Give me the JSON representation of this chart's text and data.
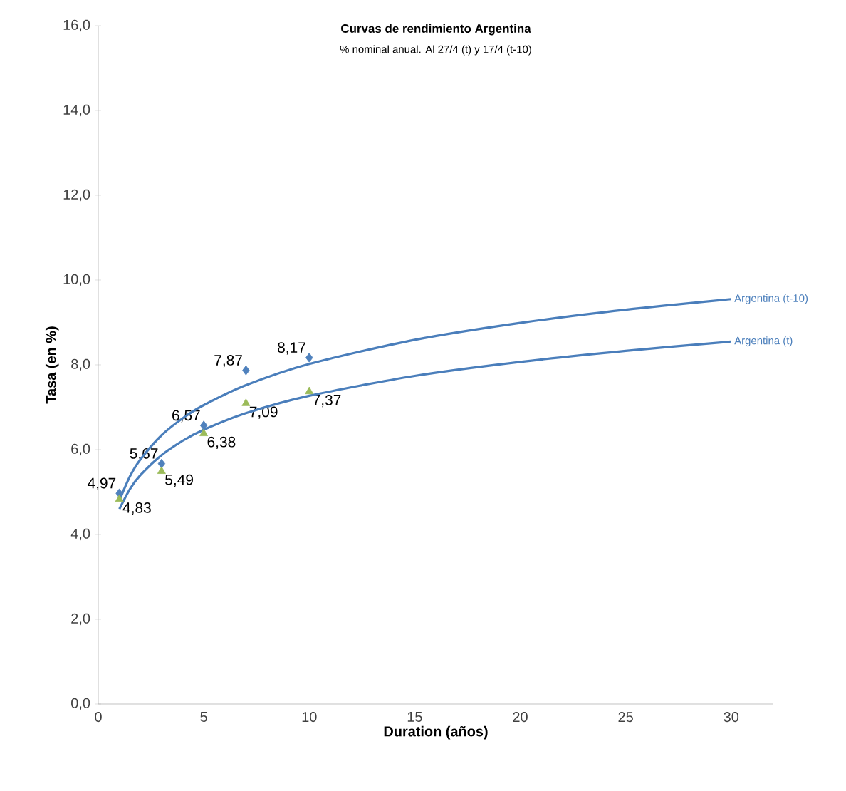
{
  "chart_data": {
    "type": "scatter",
    "title": "Curvas de rendimiento Argentina",
    "subtitle": "% nominal anual. Al 27/4 (t) y 17/4 (t-10)",
    "xlabel": "Duration (años)",
    "ylabel": "Tasa (en %)",
    "xlim": [
      0,
      32
    ],
    "xticks": [
      0,
      5,
      10,
      15,
      20,
      25,
      30
    ],
    "ylim": [
      0,
      16
    ],
    "yticks": [
      {
        "value": 0,
        "label": "0,0"
      },
      {
        "value": 2,
        "label": "2,0"
      },
      {
        "value": 4,
        "label": "4,0"
      },
      {
        "value": 6,
        "label": "6,0"
      },
      {
        "value": 8,
        "label": "8,0"
      },
      {
        "value": 10,
        "label": "10,0"
      },
      {
        "value": 12,
        "label": "12,0"
      },
      {
        "value": 14,
        "label": "14,0"
      },
      {
        "value": 16,
        "label": "16,0"
      }
    ],
    "series": [
      {
        "color": "#4f81bd",
        "marker": "diamond",
        "x": [
          1,
          3,
          5,
          7,
          10
        ],
        "values": [
          4.97,
          5.67,
          6.57,
          7.87,
          8.17
        ],
        "value_labels": [
          "4,97",
          "5,67",
          "6,57",
          "7,87",
          "8,17"
        ]
      },
      {
        "color": "#9bbb59",
        "marker": "triangle",
        "x": [
          1,
          3,
          5,
          7,
          10
        ],
        "values": [
          4.83,
          5.49,
          6.38,
          7.09,
          7.37
        ],
        "value_labels": [
          "4,83",
          "5,49",
          "6,38",
          "7,09",
          "7,37"
        ]
      },
      {
        "type": "line",
        "name": "Argentina (t-10)",
        "color": "#4a7ebb",
        "marker": "none",
        "x": [
          1,
          1.5,
          2,
          3,
          4,
          5,
          7,
          10,
          15,
          20,
          25,
          30
        ],
        "values": [
          4.8,
          5.37,
          5.77,
          6.34,
          6.74,
          7.05,
          7.52,
          8.02,
          8.59,
          8.99,
          9.3,
          9.55
        ]
      },
      {
        "type": "line",
        "name": "Argentina (t)",
        "color": "#4a7ebb",
        "marker": "none",
        "x": [
          1,
          1.5,
          2,
          3,
          4,
          5,
          7,
          10,
          15,
          20,
          25,
          30
        ],
        "values": [
          4.6,
          5.07,
          5.4,
          5.87,
          6.21,
          6.47,
          6.86,
          7.27,
          7.74,
          8.07,
          8.33,
          8.55
        ]
      }
    ]
  }
}
